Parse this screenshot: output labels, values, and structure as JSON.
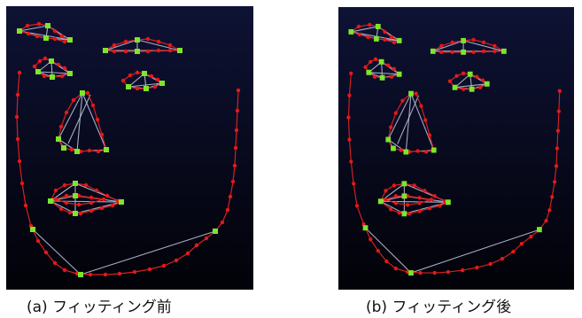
{
  "figure": {
    "panels": [
      {
        "id": "a",
        "caption": "(a) フィッティング前",
        "bg_top": "#0e1234",
        "bg_bottom": "#020208"
      },
      {
        "id": "b",
        "caption": "(b) フィッティング後",
        "bg_top": "#0e1234",
        "bg_bottom": "#020208"
      }
    ],
    "colors": {
      "contour": "#d82020",
      "point": "#e81818",
      "landmark": "#7ee52a",
      "mesh": "#b9bfd8"
    }
  }
}
